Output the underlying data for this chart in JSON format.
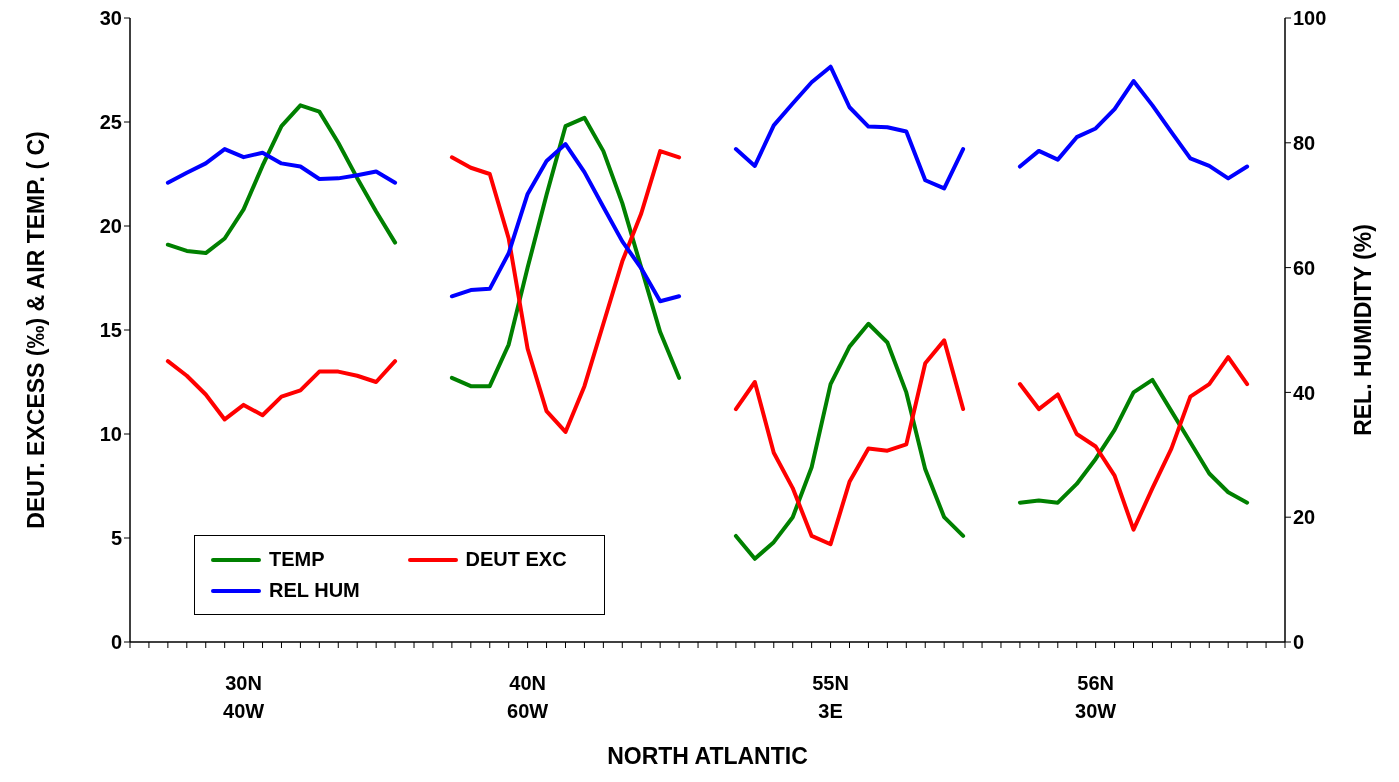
{
  "chart_data": {
    "type": "line",
    "xlabel": "NORTH ATLANTIC",
    "ylabel": "DEUT. EXCESS (‰) & AIR TEMP. ( C)",
    "y2label": "REL. HUMIDITY (%)",
    "categories": [
      null,
      null,
      null,
      null,
      null,
      null,
      "30N\n40W",
      null,
      null,
      null,
      null,
      null,
      null,
      null,
      null,
      null,
      null,
      null,
      null,
      null,
      null,
      "40N\n60W",
      null,
      null,
      null,
      null,
      null,
      null,
      null,
      null,
      null,
      null,
      null,
      null,
      null,
      null,
      null,
      "55N\n3E",
      null,
      null,
      null,
      null,
      null,
      null,
      null,
      null,
      null,
      null,
      null,
      null,
      null,
      "56N\n30W",
      null,
      null,
      null,
      null,
      null,
      null,
      null,
      null,
      null,
      null
    ],
    "series": [
      {
        "name": "TEMP",
        "color": "#008000",
        "values": [
          null,
          null,
          19.1,
          18.8,
          18.7,
          19.4,
          20.8,
          22.9,
          24.8,
          25.8,
          25.5,
          24.0,
          22.3,
          20.7,
          19.2,
          null,
          null,
          12.7,
          12.3,
          12.3,
          14.3,
          18.0,
          21.5,
          24.8,
          25.2,
          23.6,
          21.1,
          18.0,
          14.9,
          12.7,
          null,
          null,
          5.1,
          4.0,
          4.8,
          6.0,
          8.4,
          12.4,
          14.2,
          15.3,
          14.4,
          12.0,
          8.3,
          6.0,
          5.1,
          null,
          null,
          6.7,
          6.8,
          6.7,
          7.6,
          8.8,
          10.2,
          12.0,
          12.6,
          11.1,
          9.6,
          8.1,
          7.2,
          6.7,
          null,
          null
        ]
      },
      {
        "name": "DEUT EXC",
        "color": "#ff0000",
        "values": [
          null,
          null,
          13.5,
          12.8,
          11.9,
          10.7,
          11.4,
          10.9,
          11.8,
          12.1,
          13.0,
          13.0,
          12.8,
          12.5,
          13.5,
          null,
          null,
          23.3,
          22.8,
          22.5,
          19.4,
          14.1,
          11.1,
          10.1,
          12.3,
          15.3,
          18.3,
          20.6,
          23.6,
          23.3,
          null,
          null,
          11.2,
          12.5,
          9.1,
          7.4,
          5.1,
          4.7,
          7.7,
          9.3,
          9.2,
          9.5,
          13.4,
          14.5,
          11.2,
          null,
          null,
          12.4,
          11.2,
          11.9,
          10.0,
          9.4,
          8.0,
          5.4,
          7.4,
          9.3,
          11.8,
          12.4,
          13.7,
          12.4,
          null,
          null
        ]
      },
      {
        "name": "REL HUM",
        "color": "#0000ff",
        "axis": "y2",
        "values": [
          null,
          null,
          73.6,
          75.2,
          76.7,
          79.0,
          77.7,
          78.4,
          76.7,
          76.2,
          74.2,
          74.3,
          74.8,
          75.4,
          73.6,
          null,
          null,
          55.4,
          56.4,
          56.6,
          62.3,
          71.8,
          77.1,
          79.8,
          75.3,
          69.7,
          64.2,
          59.9,
          54.6,
          55.4,
          null,
          null,
          79.0,
          76.3,
          82.8,
          86.3,
          89.7,
          92.2,
          85.7,
          82.6,
          82.5,
          81.8,
          74.0,
          72.7,
          79.0,
          null,
          null,
          76.2,
          78.7,
          77.3,
          80.9,
          82.3,
          85.4,
          89.9,
          86.0,
          81.7,
          77.5,
          76.3,
          74.3,
          76.2,
          null,
          null
        ]
      }
    ],
    "ylim": [
      0,
      30
    ],
    "yticks": [
      0,
      5,
      10,
      15,
      20,
      25,
      30
    ],
    "y2lim": [
      0,
      100
    ],
    "y2ticks": [
      0,
      20,
      40,
      60,
      80,
      100
    ],
    "grid": false,
    "legend": "bottom left",
    "marker": "none",
    "line_style": "solid"
  }
}
